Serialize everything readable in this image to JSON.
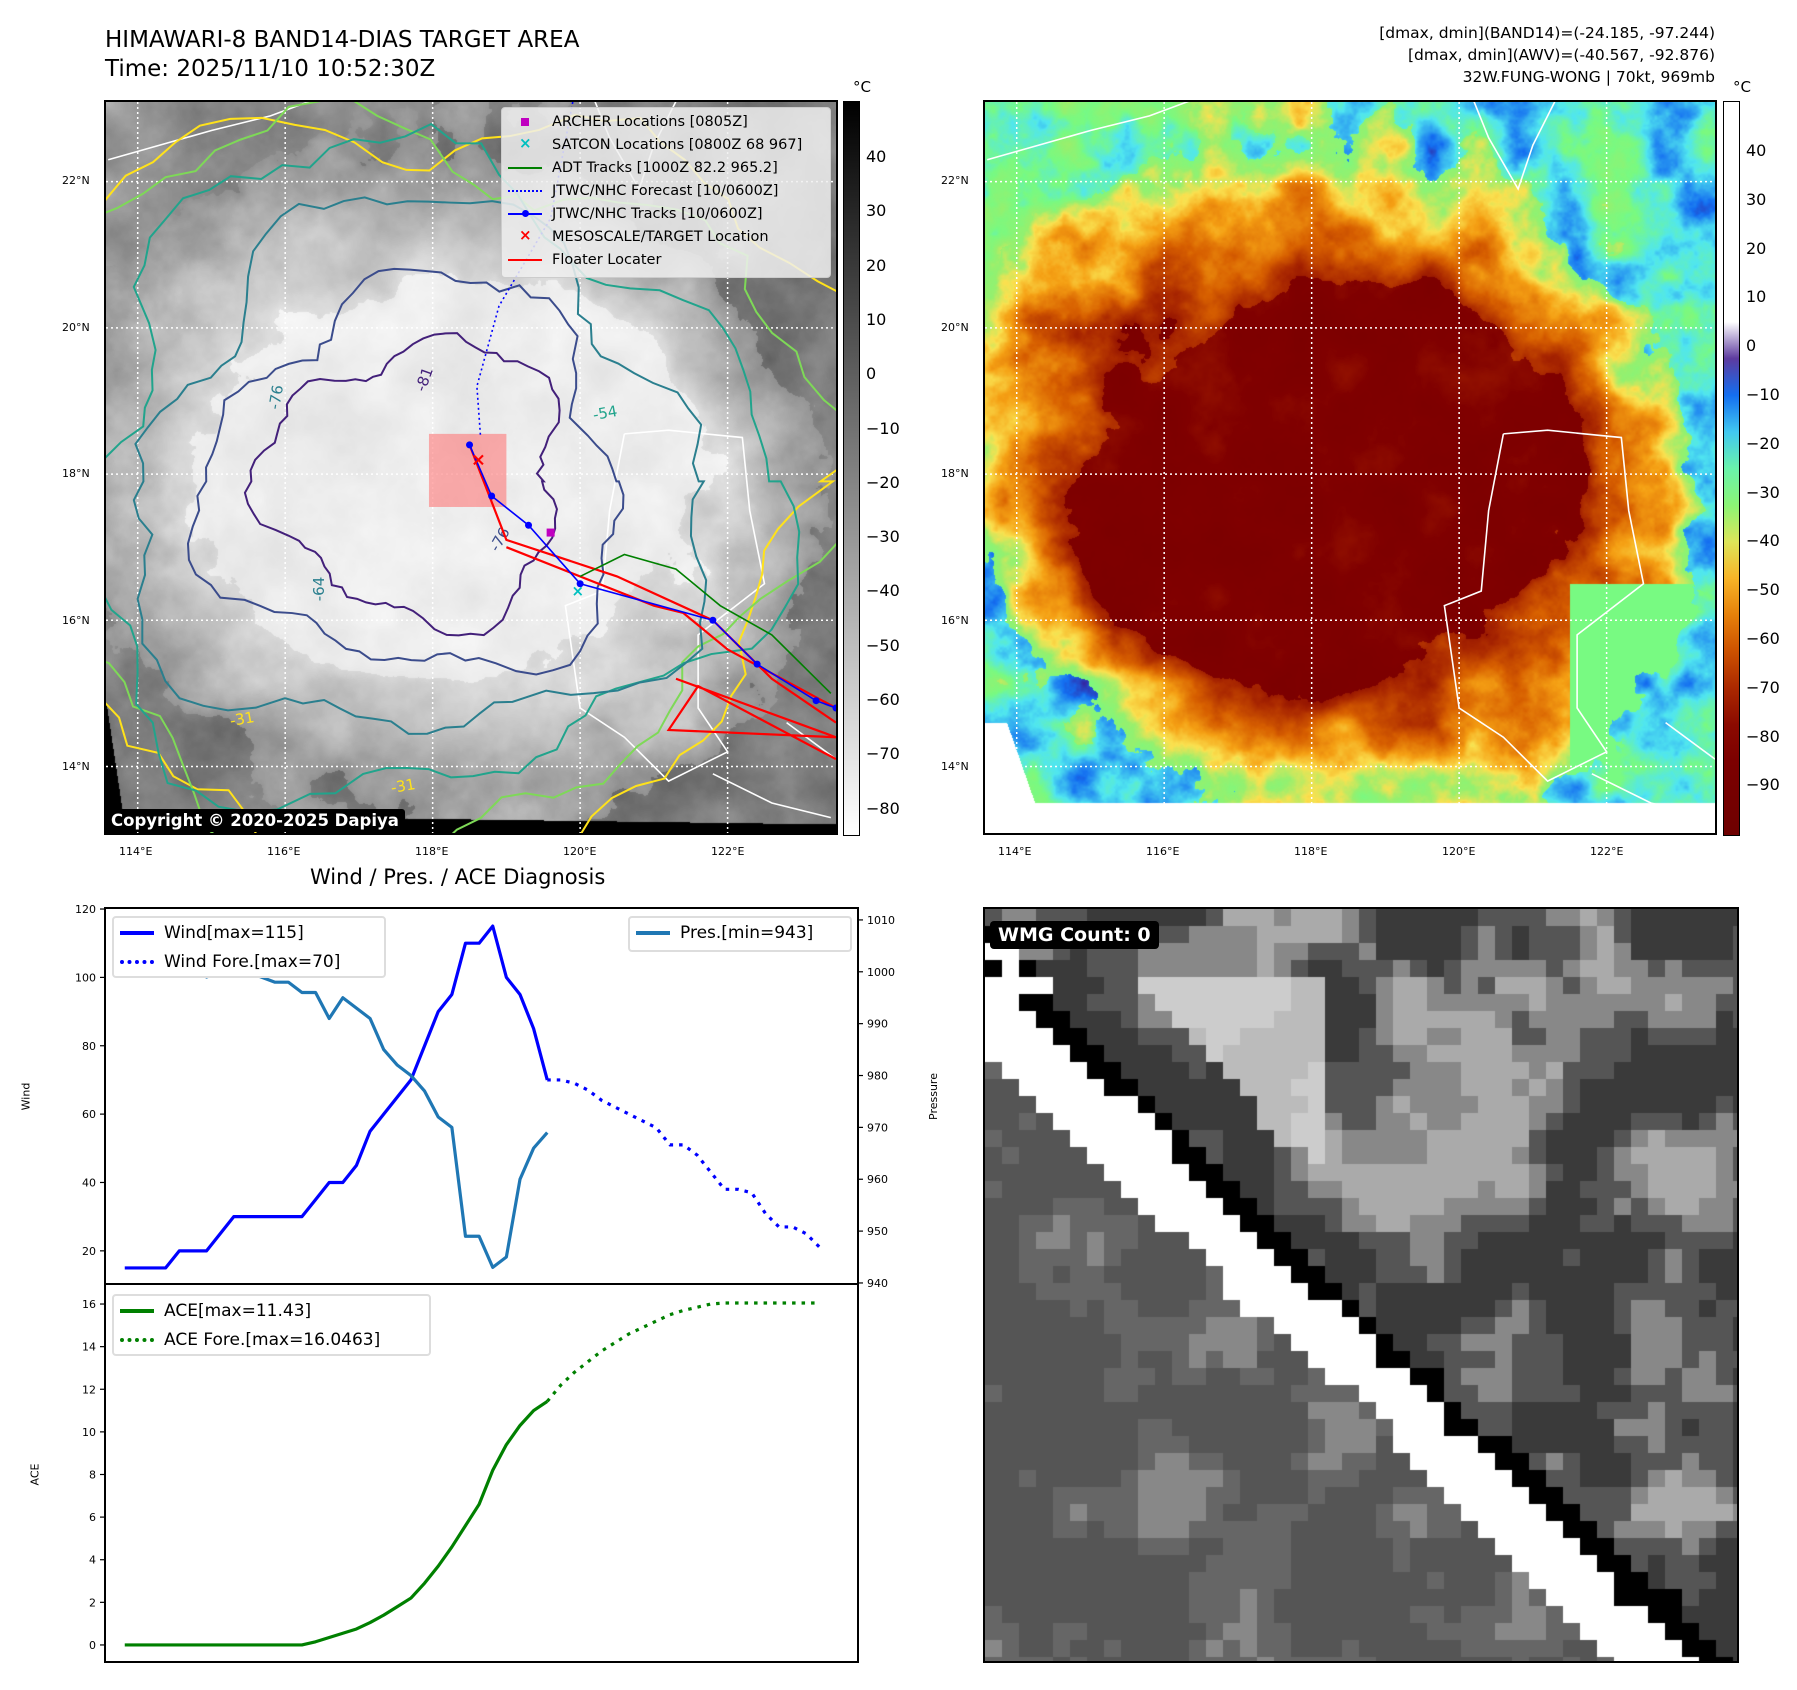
{
  "header": {
    "title": "HIMAWARI-8 BAND14-DIAS TARGET AREA",
    "time": "Time: 2025/11/10 10:52:30Z",
    "info_lines": [
      "[dmax, dmin](BAND14)=(-24.185, -97.244)",
      "[dmax, dmin](AWV)=(-40.567, -92.876)",
      "32W.FUNG-WONG | 70kt, 969mb"
    ]
  },
  "maps": {
    "lat_labels": [
      "22°N",
      "20°N",
      "18°N",
      "16°N",
      "14°N"
    ],
    "lon_labels": [
      "114°E",
      "116°E",
      "118°E",
      "120°E",
      "122°E"
    ],
    "copyright": "Copyright © 2020-2025 Dapiya",
    "legend": [
      {
        "label": "ARCHER Locations [0805Z]",
        "color": "#c000c0",
        "icon": "square-marker-icon"
      },
      {
        "label": "SATCON Locations [0800Z 68 967]",
        "color": "#00c0c0",
        "icon": "x-marker-icon"
      },
      {
        "label": "ADT Tracks [1000Z 82.2 965.2]",
        "color": "#008000",
        "icon": "solid-line-icon"
      },
      {
        "label": "JTWC/NHC Forecast [10/0600Z]",
        "color": "#0000ff",
        "icon": "dotted-line-icon"
      },
      {
        "label": "JTWC/NHC Tracks [10/0600Z]",
        "color": "#0000ff",
        "icon": "line-dot-marker-icon"
      },
      {
        "label": "MESOSCALE/TARGET Location",
        "color": "#ff0000",
        "icon": "x-marker-icon"
      },
      {
        "label": "Floater Locater",
        "color": "#ff0000",
        "icon": "solid-line-icon"
      }
    ],
    "colorbar_unit": "°C",
    "band14_colorbar_ticks": [
      "40",
      "30",
      "20",
      "10",
      "0",
      "−10",
      "−20",
      "−30",
      "−40",
      "−50",
      "−60",
      "−70",
      "−80"
    ],
    "awv_colorbar_ticks": [
      "40",
      "30",
      "20",
      "10",
      "0",
      "−10",
      "−20",
      "−30",
      "−40",
      "−50",
      "−60",
      "−70",
      "−80",
      "−90"
    ],
    "contour_labels": [
      "-81",
      "-76",
      "-64",
      "-54",
      "-31",
      "-31",
      "-76"
    ],
    "wmg_label": "WMG Count: 0"
  },
  "chart_data": {
    "type": "line",
    "title": "Wind / Pres. / ACE Diagnosis",
    "panels": [
      {
        "name": "wind-pressure",
        "ylabel": "Wind",
        "ylabel_right": "Pressure",
        "ylim": [
          10.3,
          120.3
        ],
        "ylim_right": [
          939.8,
          1012.3
        ],
        "yticks": [
          "20",
          "40",
          "60",
          "80",
          "100",
          "120"
        ],
        "yticks_right": [
          "940",
          "950",
          "960",
          "970",
          "980",
          "990",
          "1000",
          "1010"
        ],
        "series": [
          {
            "name": "Wind[max=115]",
            "axis": "left",
            "style": "solid",
            "color": "#0000ff",
            "x_start": 0,
            "values": [
              15,
              15,
              15,
              15,
              20,
              20,
              20,
              25,
              30,
              30,
              30,
              30,
              30,
              30,
              35,
              40,
              40,
              45,
              55,
              60,
              65,
              70,
              80,
              90,
              95,
              110,
              110,
              115,
              100,
              95,
              85,
              70
            ]
          },
          {
            "name": "Wind Fore.[max=70]",
            "axis": "left",
            "style": "dotted",
            "color": "#0000ff",
            "x_start": 31,
            "values": [
              70,
              70,
              69,
              67,
              64,
              62,
              60,
              58,
              56,
              51,
              51,
              48,
              43,
              38,
              38,
              37,
              31,
              27,
              27,
              25,
              21
            ]
          },
          {
            "name": "Pres.[min=943]",
            "axis": "right",
            "style": "solid",
            "color": "#1f77b4",
            "x_start": 0,
            "values": [
              1009,
              1006,
              1006,
              1006,
              1005,
              1004,
              999,
              1000,
              1000,
              1000,
              999,
              998,
              998,
              996,
              996,
              991,
              995,
              993,
              991,
              985,
              982,
              980,
              977,
              972,
              970,
              949,
              949,
              943,
              945,
              960,
              966,
              969
            ]
          }
        ]
      },
      {
        "name": "ace",
        "ylabel": "ACE",
        "ylim": [
          -0.8,
          16.94
        ],
        "yticks": [
          "0",
          "2",
          "4",
          "6",
          "8",
          "10",
          "12",
          "14",
          "16"
        ],
        "series": [
          {
            "name": "ACE[max=11.43]",
            "style": "solid",
            "color": "#008000",
            "x_start": 0,
            "values": [
              0,
              0,
              0,
              0,
              0,
              0,
              0,
              0,
              0,
              0,
              0,
              0,
              0,
              0,
              0.15,
              0.35,
              0.55,
              0.75,
              1.05,
              1.4,
              1.8,
              2.2,
              2.9,
              3.7,
              4.6,
              5.6,
              6.6,
              8.2,
              9.4,
              10.3,
              11.0,
              11.43
            ]
          },
          {
            "name": "ACE Fore.[max=16.0463]",
            "style": "dotted",
            "color": "#008000",
            "x_start": 31,
            "values": [
              11.43,
              12.2,
              12.8,
              13.3,
              13.8,
              14.2,
              14.6,
              14.9,
              15.2,
              15.5,
              15.7,
              15.85,
              16.0,
              16.05,
              16.05,
              16.05,
              16.05,
              16.05,
              16.05,
              16.05,
              16.05
            ]
          }
        ]
      }
    ],
    "xlim": [
      -1.45,
      53.8
    ]
  }
}
